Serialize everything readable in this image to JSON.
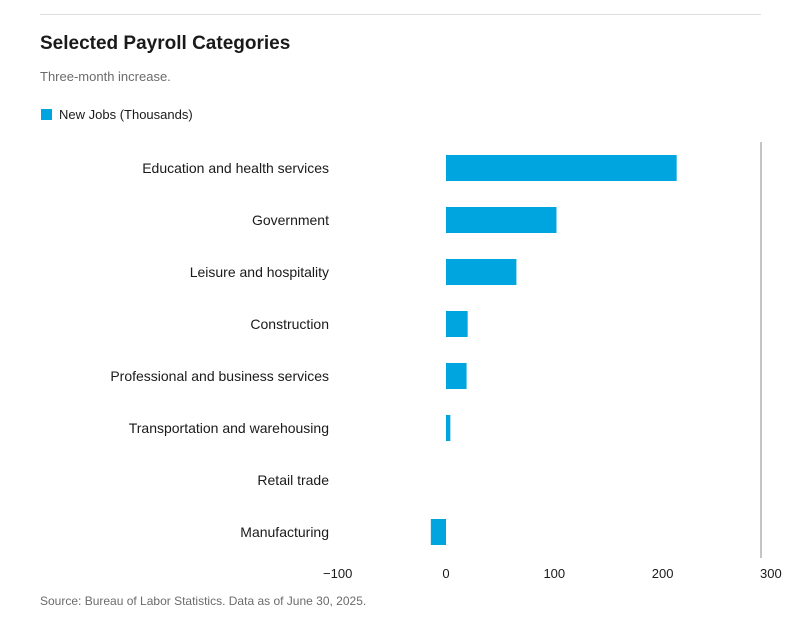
{
  "header": {
    "title": "Selected Payroll Categories",
    "subtitle": "Three-month increase."
  },
  "footer": {
    "source": "Source: Bureau of Labor Statistics. Data as of June 30, 2025."
  },
  "colors": {
    "bar": "#00a5e0",
    "axis_line": "#8a8a8a",
    "text": "#1a1a1a",
    "muted_text": "#6b6b6b"
  },
  "chart_data": {
    "type": "bar",
    "orientation": "horizontal",
    "title": "Selected Payroll Categories",
    "subtitle": "Three-month increase.",
    "categories": [
      "Education and health services",
      "Government",
      "Leisure and hospitality",
      "Construction",
      "Professional and business services",
      "Transportation and warehousing",
      "Retail trade",
      "Manufacturing"
    ],
    "series": [
      {
        "name": "New Jobs (Thousands)",
        "values": [
          213,
          102,
          65,
          20,
          19,
          4,
          0,
          -14
        ]
      }
    ],
    "xlim": [
      -100,
      300
    ],
    "xticks": [
      -100,
      0,
      100,
      200,
      300
    ],
    "xtick_labels": [
      "−100",
      "0",
      "100",
      "200",
      "300"
    ],
    "grid": false,
    "legend_position": "top-left"
  }
}
